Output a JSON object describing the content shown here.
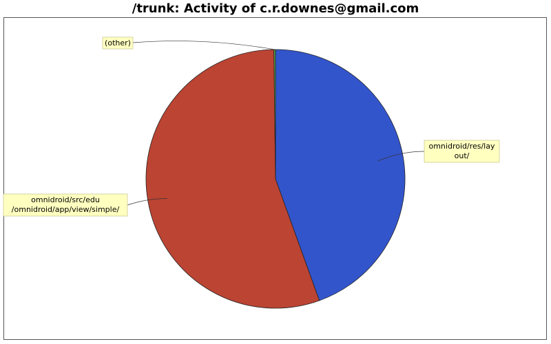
{
  "chart_data": {
    "type": "pie",
    "title": "/trunk: Activity of c.r.downes@gmail.com",
    "slices": [
      {
        "label": "omnidroid/res/layout/",
        "label_lines": [
          "omnidroid/res/lay",
          "out/"
        ],
        "value": 44.5,
        "color": "#3355cc"
      },
      {
        "label": "omnidroid/src/edu/omnidroid/app/view/simple/",
        "label_lines": [
          "omnidroid/src/edu",
          "/omnidroid/app/view/simple/"
        ],
        "value": 55.3,
        "color": "#bb4433"
      },
      {
        "label": "(other)",
        "label_lines": [
          "(other)"
        ],
        "value": 0.2,
        "color": "#55aa44"
      }
    ],
    "legend": "none",
    "label_style": "callout"
  }
}
